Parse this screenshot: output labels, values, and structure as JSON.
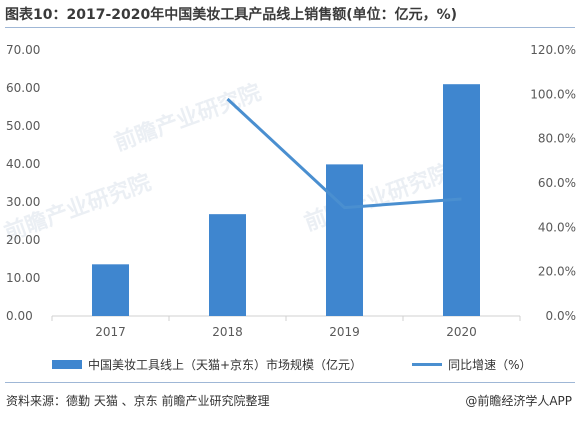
{
  "title": "图表10：2017-2020年中国美妆工具产品线上销售额(单位：亿元，%)",
  "source": "资料来源：德勤 天猫 、京东 前瞻产业研究院整理",
  "credit": "@前瞻经济学人APP",
  "watermark": "前瞻产业研究院",
  "colors": {
    "bar": "#3f86cf",
    "line": "#4a8fd0",
    "axis": "#d0d0d0"
  },
  "chart_data": {
    "type": "bar+line",
    "categories": [
      "2017",
      "2018",
      "2019",
      "2020"
    ],
    "left_axis": {
      "ylim": [
        0,
        70
      ],
      "ticks": [
        "0.00",
        "10.00",
        "20.00",
        "30.00",
        "40.00",
        "50.00",
        "60.00",
        "70.00"
      ]
    },
    "right_axis": {
      "ylim": [
        0,
        120
      ],
      "ticks": [
        "0.0%",
        "20.0%",
        "40.0%",
        "60.0%",
        "80.0%",
        "100.0%",
        "120.0%"
      ]
    },
    "series": [
      {
        "name": "中国美妆工具线上（天猫+京东）市场规模（亿元）",
        "type": "bar",
        "axis": "left",
        "values": [
          13.6,
          26.8,
          39.9,
          61.0
        ]
      },
      {
        "name": "同比增速（%）",
        "type": "line",
        "axis": "right",
        "values": [
          null,
          97.9,
          48.9,
          52.8
        ]
      }
    ]
  }
}
